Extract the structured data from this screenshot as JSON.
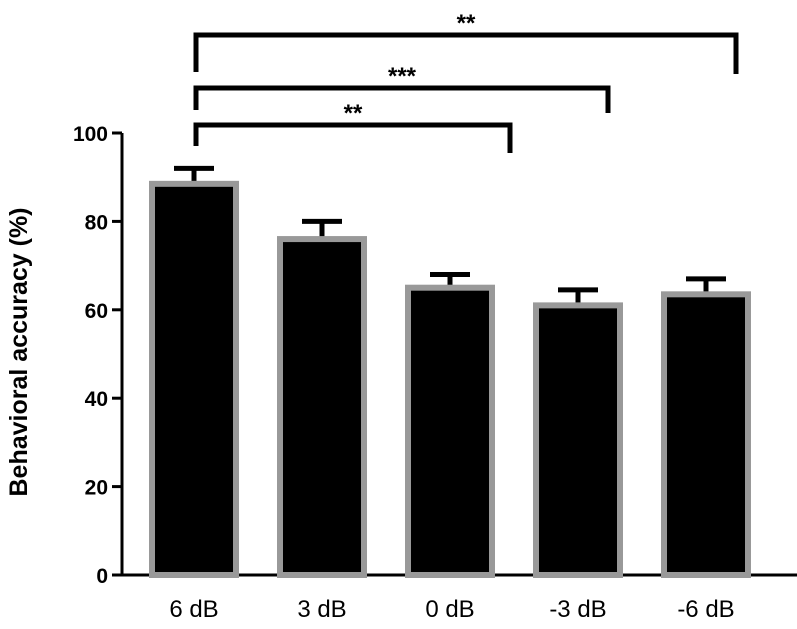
{
  "chart_data": {
    "type": "bar",
    "categories": [
      "6 dB",
      "3 dB",
      "0 dB",
      "-3 dB",
      "-6 dB"
    ],
    "values": [
      88.5,
      76,
      65,
      61,
      63.5
    ],
    "errors": [
      3.5,
      4,
      3,
      3.5,
      3.5
    ],
    "ylabel": "Behavioral accuracy (%)",
    "xlabel": "",
    "ylim": [
      0,
      100
    ],
    "yticks": [
      0,
      20,
      40,
      60,
      80,
      100
    ],
    "bar_color": "#000000",
    "bar_edge_color": "#999999",
    "significance": [
      {
        "from": "6 dB",
        "to": "0 dB",
        "label": "**",
        "level": 1
      },
      {
        "from": "6 dB",
        "to": "-3 dB",
        "label": "***",
        "level": 2
      },
      {
        "from": "6 dB",
        "to": "-6 dB",
        "label": "**",
        "level": 3
      }
    ]
  }
}
